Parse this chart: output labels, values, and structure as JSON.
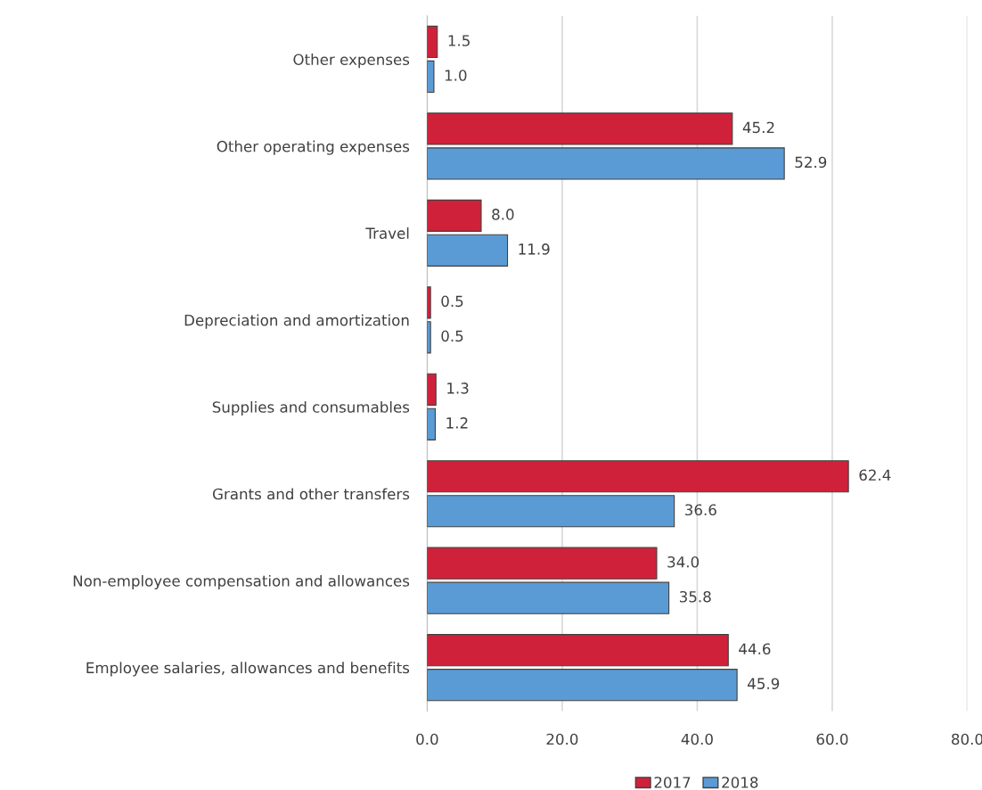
{
  "chart_data": {
    "type": "bar",
    "orientation": "horizontal",
    "categories": [
      "Other expenses",
      "Other operating expenses",
      "Travel",
      "Depreciation and amortization",
      "Supplies and consumables",
      "Grants and other transfers",
      "Non-employee compensation and allowances",
      "Employee salaries, allowances and benefits"
    ],
    "series": [
      {
        "name": "2017",
        "color": "#d0213a",
        "values": [
          1.5,
          45.2,
          8.0,
          0.5,
          1.3,
          62.4,
          34.0,
          44.6
        ],
        "value_labels": [
          "1.5",
          "45.2",
          "8.0",
          "0.5",
          "1.3",
          "62.4",
          "34.0",
          "44.6"
        ]
      },
      {
        "name": "2018",
        "color": "#5b9bd5",
        "values": [
          1.0,
          52.9,
          11.9,
          0.5,
          1.2,
          36.6,
          35.8,
          45.9
        ],
        "value_labels": [
          "1.0",
          "52.9",
          "11.9",
          "0.5",
          "1.2",
          "36.6",
          "35.8",
          "45.9"
        ]
      }
    ],
    "xlim": [
      0,
      80
    ],
    "xticks": [
      {
        "value": 0,
        "label": "0.0"
      },
      {
        "value": 20,
        "label": "20.0"
      },
      {
        "value": 40,
        "label": "40.0"
      },
      {
        "value": 60,
        "label": "60.0"
      },
      {
        "value": 80,
        "label": "80.0"
      }
    ],
    "grid": "x",
    "legend": "bottom"
  }
}
